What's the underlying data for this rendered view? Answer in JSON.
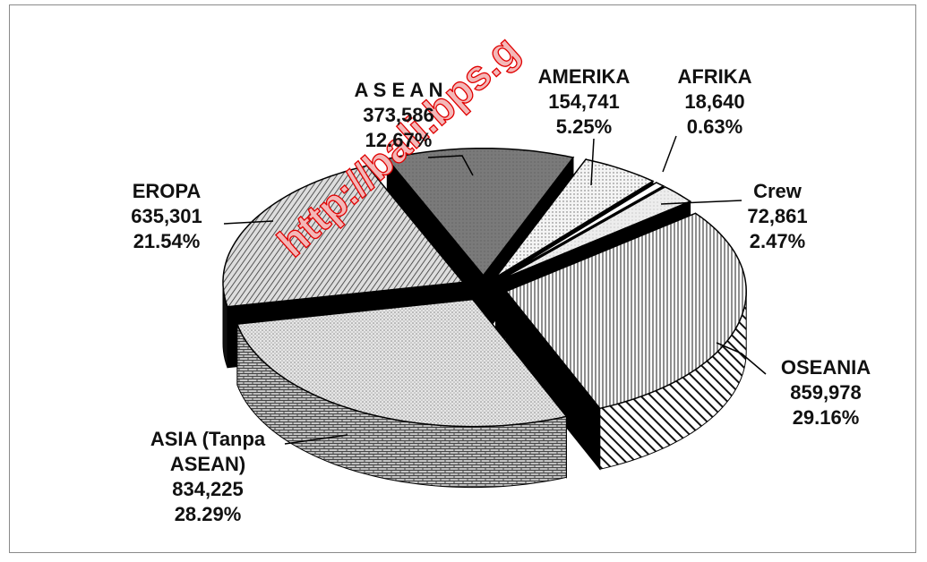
{
  "chart_data": {
    "type": "pie",
    "categories": [
      "AMERIKA",
      "AFRIKA",
      "Crew",
      "OSEANIA",
      "ASIA (Tanpa ASEAN)",
      "EROPA",
      "A S E A N"
    ],
    "values": [
      154741,
      18640,
      72861,
      859978,
      834225,
      635301,
      373586
    ],
    "value_labels": [
      "154,741",
      "18,640",
      "72,861",
      "859,978",
      "834,225",
      "635,301",
      "373,586"
    ],
    "percents": [
      5.25,
      0.63,
      2.47,
      29.16,
      28.29,
      21.54,
      12.67
    ],
    "percent_labels": [
      "5.25%",
      "0.63%",
      "2.47%",
      "29.16%",
      "28.29%",
      "21.54%",
      "12.67%"
    ],
    "watermark": "http://bali.bps.g"
  }
}
